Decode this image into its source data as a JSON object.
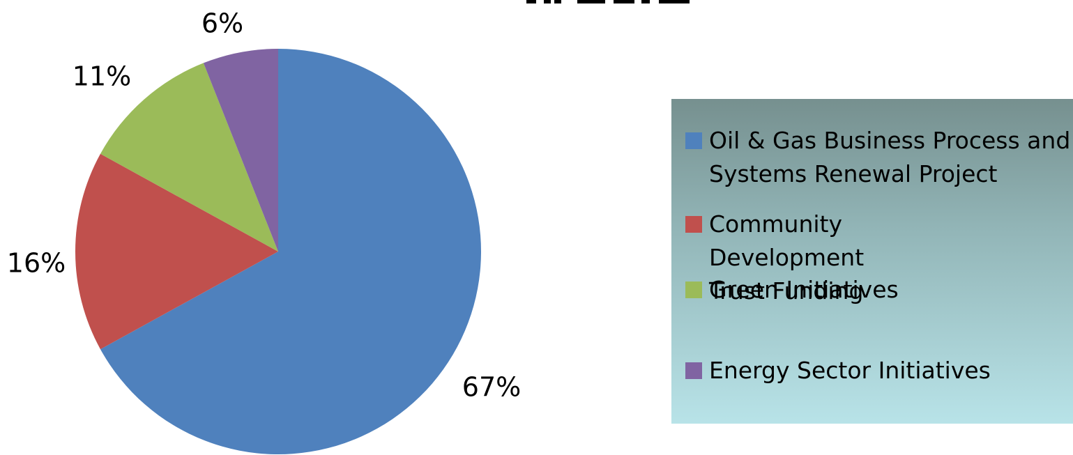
{
  "chart_data": {
    "type": "pie",
    "title": "",
    "slices": [
      {
        "label": "Oil & Gas Business Process and Systems Renewal Project",
        "value": 67,
        "display": "67%",
        "color": "#4f81bd"
      },
      {
        "label": "Community Development Trust Funding",
        "value": 16,
        "display": "16%",
        "color": "#c0504d"
      },
      {
        "label": "Green Initiatives",
        "value": 11,
        "display": "11%",
        "color": "#9bbb59"
      },
      {
        "label": "Energy Sector Initiatives",
        "value": 6,
        "display": "6%",
        "color": "#8064a2"
      }
    ],
    "legend_position": "right"
  },
  "legend": {
    "items": [
      {
        "label": "Oil & Gas Business Process and Systems Renewal Project",
        "color": "#4f81bd"
      },
      {
        "label": "Community Development Trust Funding",
        "color": "#c0504d"
      },
      {
        "label": "Green Initiatives",
        "color": "#9bbb59"
      },
      {
        "label": "Energy Sector Initiatives",
        "color": "#8064a2"
      }
    ]
  }
}
